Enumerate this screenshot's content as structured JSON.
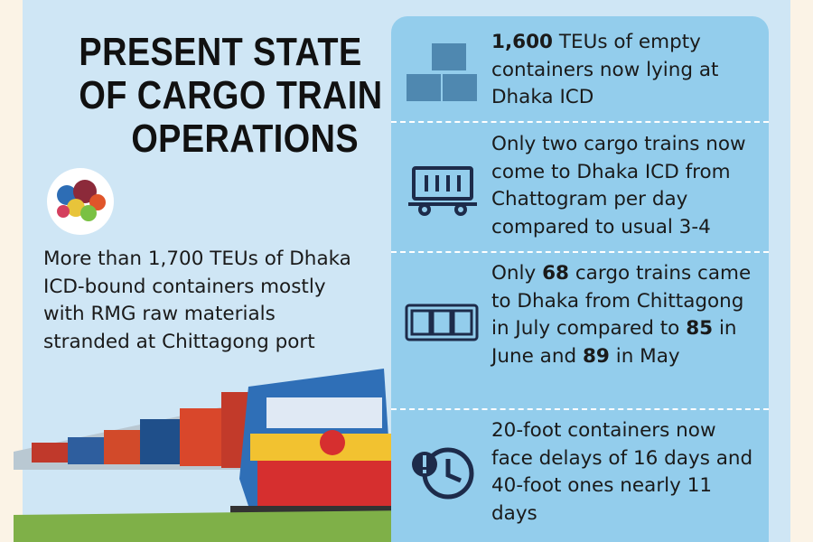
{
  "header": {
    "title_lines": [
      "PRESENT STATE",
      "OF CARGO TRAIN",
      "OPERATIONS"
    ]
  },
  "left_text": "More than 1,700 TEUs of Dhaka ICD-bound containers mostly with RMG raw materials stranded at Chittagong port",
  "items": [
    {
      "parts": [
        "1,600",
        "TEUs of empty containers now lying at Dhaka ICD"
      ]
    },
    {
      "parts": [
        "Only two cargo trains now come to Dhaka ICD from Chattogram per day compared to usual 3-4"
      ]
    },
    {
      "parts": [
        "Only",
        "68",
        "cargo trains came to Dhaka from Chittagong in July compared to",
        "85",
        "in June and",
        "89",
        "in May"
      ]
    },
    {
      "parts": [
        "20-foot containers now face delays of 16 days and 40-foot ones nearly 11 days"
      ]
    }
  ]
}
